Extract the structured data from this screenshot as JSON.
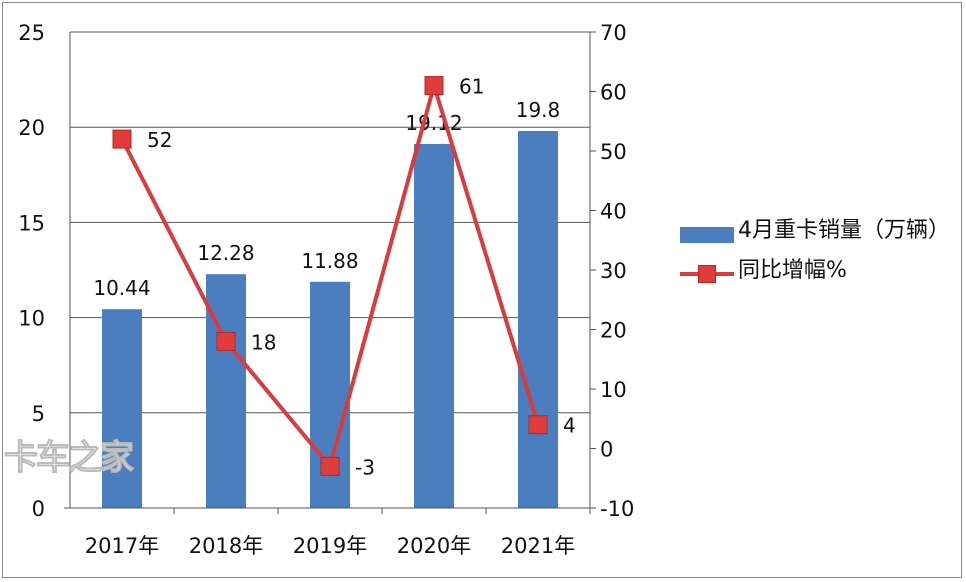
{
  "chart_data": {
    "type": "bar+line",
    "categories": [
      "2017年",
      "2018年",
      "2019年",
      "2020年",
      "2021年"
    ],
    "series": [
      {
        "name": "4月重卡销量（万辆）",
        "type": "bar",
        "axis": "left",
        "values": [
          10.44,
          12.28,
          11.88,
          19.12,
          19.8
        ],
        "labels": [
          "10.44",
          "12.28",
          "11.88",
          "19.12",
          "19.8"
        ],
        "color": "#4a7ebf"
      },
      {
        "name": "同比增幅%",
        "type": "line",
        "axis": "right",
        "values": [
          52,
          18,
          -3,
          61,
          4
        ],
        "labels": [
          "52",
          "18",
          "-3",
          "61",
          "4"
        ],
        "color": "#d93c3c"
      }
    ],
    "left_axis": {
      "ylim": [
        0,
        25
      ],
      "ticks": [
        "0",
        "5",
        "10",
        "15",
        "20",
        "25"
      ]
    },
    "right_axis": {
      "ylim": [
        -10,
        70
      ],
      "ticks": [
        "-10",
        "0",
        "10",
        "20",
        "30",
        "40",
        "50",
        "60",
        "70"
      ]
    },
    "grid": true,
    "legend": "right",
    "watermark": "卡车之家"
  }
}
